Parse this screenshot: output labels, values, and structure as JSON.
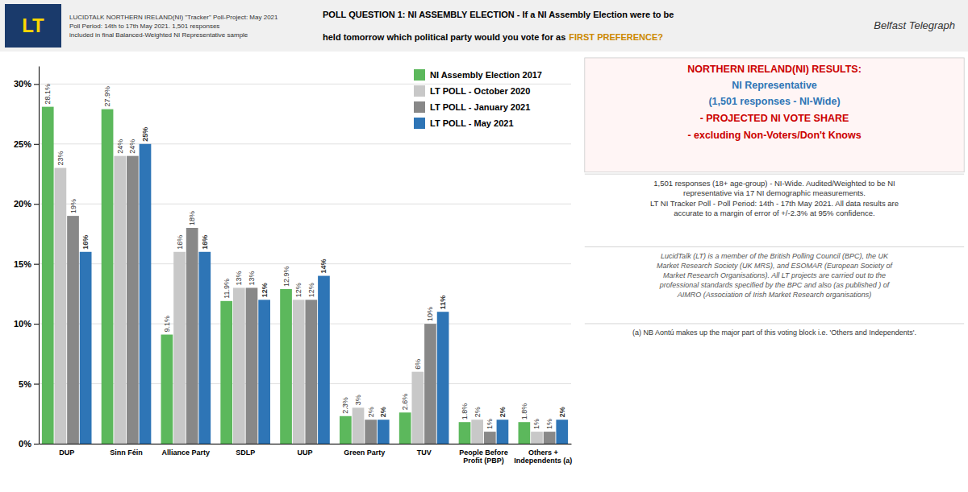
{
  "chart_data": {
    "type": "bar",
    "title": "POLL QUESTION 1: NI ASSEMBLY ELECTION - If a NI Assembly Election were to be\nheld tomorrow which political party would you vote for as",
    "categories": [
      "DUP",
      "Sinn Féin",
      "Alliance Party",
      "SDLP",
      "UUP",
      "Green Party",
      "TUV",
      "People Before\nProfit (PBP)",
      "Others +\nIndependents (a)"
    ],
    "series": [
      {
        "name": "NI Assembly Election 2017",
        "color": "#5cb85c",
        "values": [
          28.1,
          27.9,
          9.1,
          11.9,
          12.9,
          2.3,
          2.6,
          1.8,
          1.8
        ],
        "value_labels": [
          "28.1%",
          "27.9%",
          "9.1%",
          "11.9%",
          "12.9%",
          "2.3%",
          "2.6%",
          "1.8%",
          "1.8%"
        ]
      },
      {
        "name": "LT POLL - October 2020",
        "color": "#c8c8c8",
        "values": [
          23,
          24,
          16,
          13,
          12,
          3,
          6,
          2,
          1
        ],
        "value_labels": [
          "23%",
          "24%",
          "16%",
          "13%",
          "12%",
          "3%",
          "6%",
          "2%",
          "1%"
        ]
      },
      {
        "name": "LT POLL - January 2021",
        "color": "#888888",
        "values": [
          19,
          24,
          18,
          13,
          12,
          2,
          10,
          1,
          1
        ],
        "value_labels": [
          "19%",
          "24%",
          "18%",
          "13%",
          "12%",
          "2%",
          "10%",
          "1%",
          "1%"
        ]
      },
      {
        "name": "LT POLL - May 2021",
        "color": "#2e75b6",
        "values": [
          16,
          25,
          16,
          12,
          14,
          2,
          11,
          2,
          2
        ],
        "value_labels": [
          "16%",
          "25%",
          "16%",
          "12%",
          "14%",
          "2%",
          "11%",
          "2%",
          "2%"
        ]
      }
    ],
    "ylim": [
      0,
      31.5
    ],
    "yticks": [
      {
        "value": 0,
        "label": "0%"
      },
      {
        "value": 5,
        "label": "5%"
      },
      {
        "value": 10,
        "label": "10%"
      },
      {
        "value": 15,
        "label": "15%"
      },
      {
        "value": 20,
        "label": "20%"
      },
      {
        "value": 25,
        "label": "25%"
      },
      {
        "value": 30,
        "label": "30%"
      }
    ],
    "grid": true,
    "legend": "top-right",
    "data_labels": true,
    "annotations": [
      {
        "text": "LT",
        "color": "#ffd700"
      },
      {
        "text": "LUCIDTALK NORTHERN IRELAND(NI) \"Tracker\" Poll-Project: May 2021\nPoll Period: 14th to 17th May 2021. 1,501 responses\nincluded in final Balanced-Weighted NI Representative sample"
      },
      {
        "text": "FIRST PREFERENCE?",
        "color": "#cc8800"
      },
      {
        "text": "Belfast Telegraph"
      },
      {
        "text": "NORTHERN IRELAND(NI) RESULTS:",
        "color": "#cc0000"
      },
      {
        "text": "NI Representative",
        "color": "#2e75b6"
      },
      {
        "text": "(1,501 responses - NI-Wide)",
        "color": "#2e75b6"
      },
      {
        "text": "- PROJECTED NI VOTE SHARE",
        "color": "#cc0000"
      },
      {
        "text": "- excluding Non-Voters/Don't Knows",
        "color": "#cc0000"
      },
      {
        "text": "1,501 responses (18+ age-group) - NI-Wide. Audited/Weighted to be NI\nrepresentative via 17 NI demographic measurements.\nLT NI Tracker Poll - Poll Period: 14th - 17th May 2021. All data results are\naccurate to a margin of error of +/-2.3% at 95% confidence."
      },
      {
        "text": "LucidTalk (LT) is a member of the British Polling Council (BPC), the UK\nMarket Research Society (UK MRS), and ESOMAR (European Society of\nMarket Research Organisations). All LT projects are carried out to the\nprofessional standards specified by the BPC and also (as published ) of\nAIMRO (Association of Irish Market Research organisations)"
      },
      {
        "text": "(a) NB Aontú makes up the major part of this voting block i.e. 'Others and Independents'."
      }
    ]
  }
}
